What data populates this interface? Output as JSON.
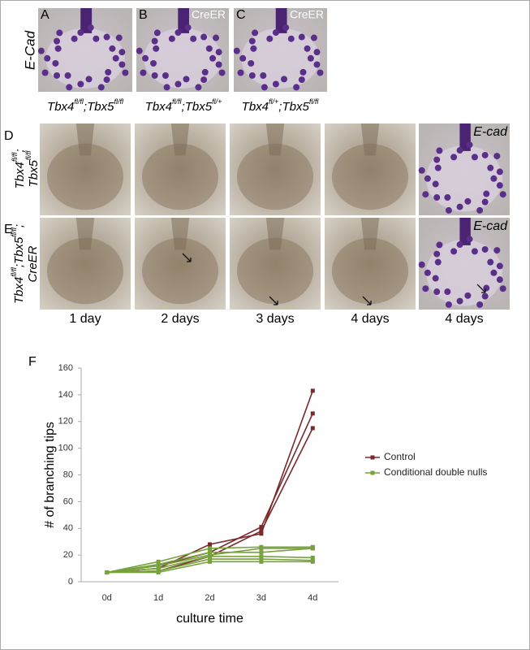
{
  "panels": {
    "top_letters": [
      "A",
      "B",
      "C"
    ],
    "top_tags": [
      "CreER",
      "CreER"
    ],
    "stain_top": "E-Cad",
    "genotypes": [
      [
        "Tbx4",
        "fl/fl",
        ";Tbx5",
        "fl/fl"
      ],
      [
        "Tbx4",
        "fl/fl",
        ";Tbx5",
        "fl/+"
      ],
      [
        "Tbx4",
        "fl/+",
        ";Tbx5",
        "fl/fl"
      ]
    ],
    "row_letters": [
      "D",
      "E"
    ],
    "row_labels": [
      [
        [
          "Tbx4",
          "fl/fl",
          ";"
        ],
        [
          "Tbx5",
          "fl/fl"
        ]
      ],
      [
        [
          "Tbx4",
          "fl/fl",
          ";Tbx5",
          "fl/fl",
          ";"
        ],
        [
          "CreER"
        ]
      ]
    ],
    "stain_rows": [
      "E-cad",
      "E-cad"
    ],
    "days": [
      "1 day",
      "2 days",
      "3 days",
      "4 days",
      "4 days"
    ],
    "chart_letter": "F"
  },
  "chart_data": {
    "type": "line",
    "xlabel": "culture time",
    "ylabel": "# of branching tips",
    "categories": [
      "0d",
      "1d",
      "2d",
      "3d",
      "4d"
    ],
    "ylim": [
      0,
      160
    ],
    "yticks": [
      0,
      20,
      40,
      60,
      80,
      100,
      120,
      140,
      160
    ],
    "grid": false,
    "legend": "right",
    "series": [
      {
        "name": "Control",
        "color": "#7a2a2e",
        "lines": [
          [
            7,
            10,
            28,
            36,
            143
          ],
          [
            7,
            12,
            22,
            41,
            126
          ],
          [
            7,
            8,
            19,
            38,
            115
          ]
        ]
      },
      {
        "name": "Conditional double nulls",
        "color": "#77a23c",
        "lines": [
          [
            7,
            15,
            25,
            26,
            26
          ],
          [
            7,
            13,
            22,
            22,
            25
          ],
          [
            7,
            10,
            19,
            19,
            18
          ],
          [
            7,
            8,
            17,
            17,
            16
          ],
          [
            7,
            7,
            15,
            15,
            15
          ],
          [
            7,
            12,
            20,
            25,
            25
          ]
        ]
      }
    ]
  }
}
